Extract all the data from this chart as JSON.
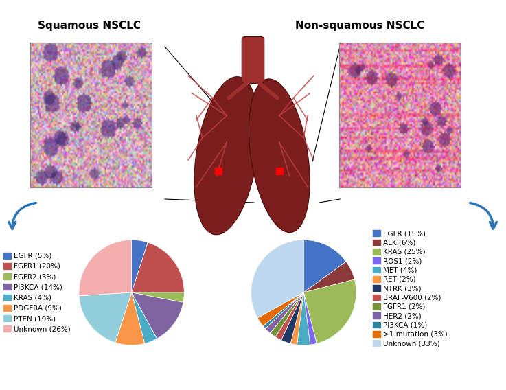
{
  "squamous_title": "Squamous NSCLC",
  "nonsquamous_title": "Non-squamous NSCLC",
  "squamous_labels": [
    "EGFR (5%)",
    "FGFR1 (20%)",
    "FGFR2 (3%)",
    "PI3KCA (14%)",
    "KRAS (4%)",
    "PDGFRA (9%)",
    "PTEN (19%)",
    "Unknown (26%)"
  ],
  "squamous_values": [
    5,
    20,
    3,
    14,
    4,
    9,
    19,
    26
  ],
  "squamous_colors": [
    "#4472C4",
    "#C0504D",
    "#9BBB59",
    "#8064A2",
    "#4BACC6",
    "#F79646",
    "#92CDDC",
    "#F2AFAD"
  ],
  "nonsquamous_labels": [
    "EGFR (15%)",
    "ALK (6%)",
    "KRAS (25%)",
    "ROS1 (2%)",
    "MET (4%)",
    "RET (2%)",
    "NTRK (3%)",
    "BRAF-V600 (2%)",
    "FGFR1 (2%)",
    "HER2 (2%)",
    "PI3KCA (1%)",
    ">1 mutation (3%)",
    "Unknown (33%)"
  ],
  "nonsquamous_values": [
    15,
    6,
    25,
    2,
    4,
    2,
    3,
    2,
    2,
    2,
    1,
    3,
    33
  ],
  "nonsquamous_colors": [
    "#4472C4",
    "#8B3A3A",
    "#9BBB59",
    "#7B68EE",
    "#4BACC6",
    "#F79646",
    "#1F3864",
    "#C0504D",
    "#76933C",
    "#8064A2",
    "#31849B",
    "#E36C09",
    "#BDD7EE"
  ],
  "background_color": "#FFFFFF",
  "title_fontsize": 11,
  "legend_fontsize": 8
}
